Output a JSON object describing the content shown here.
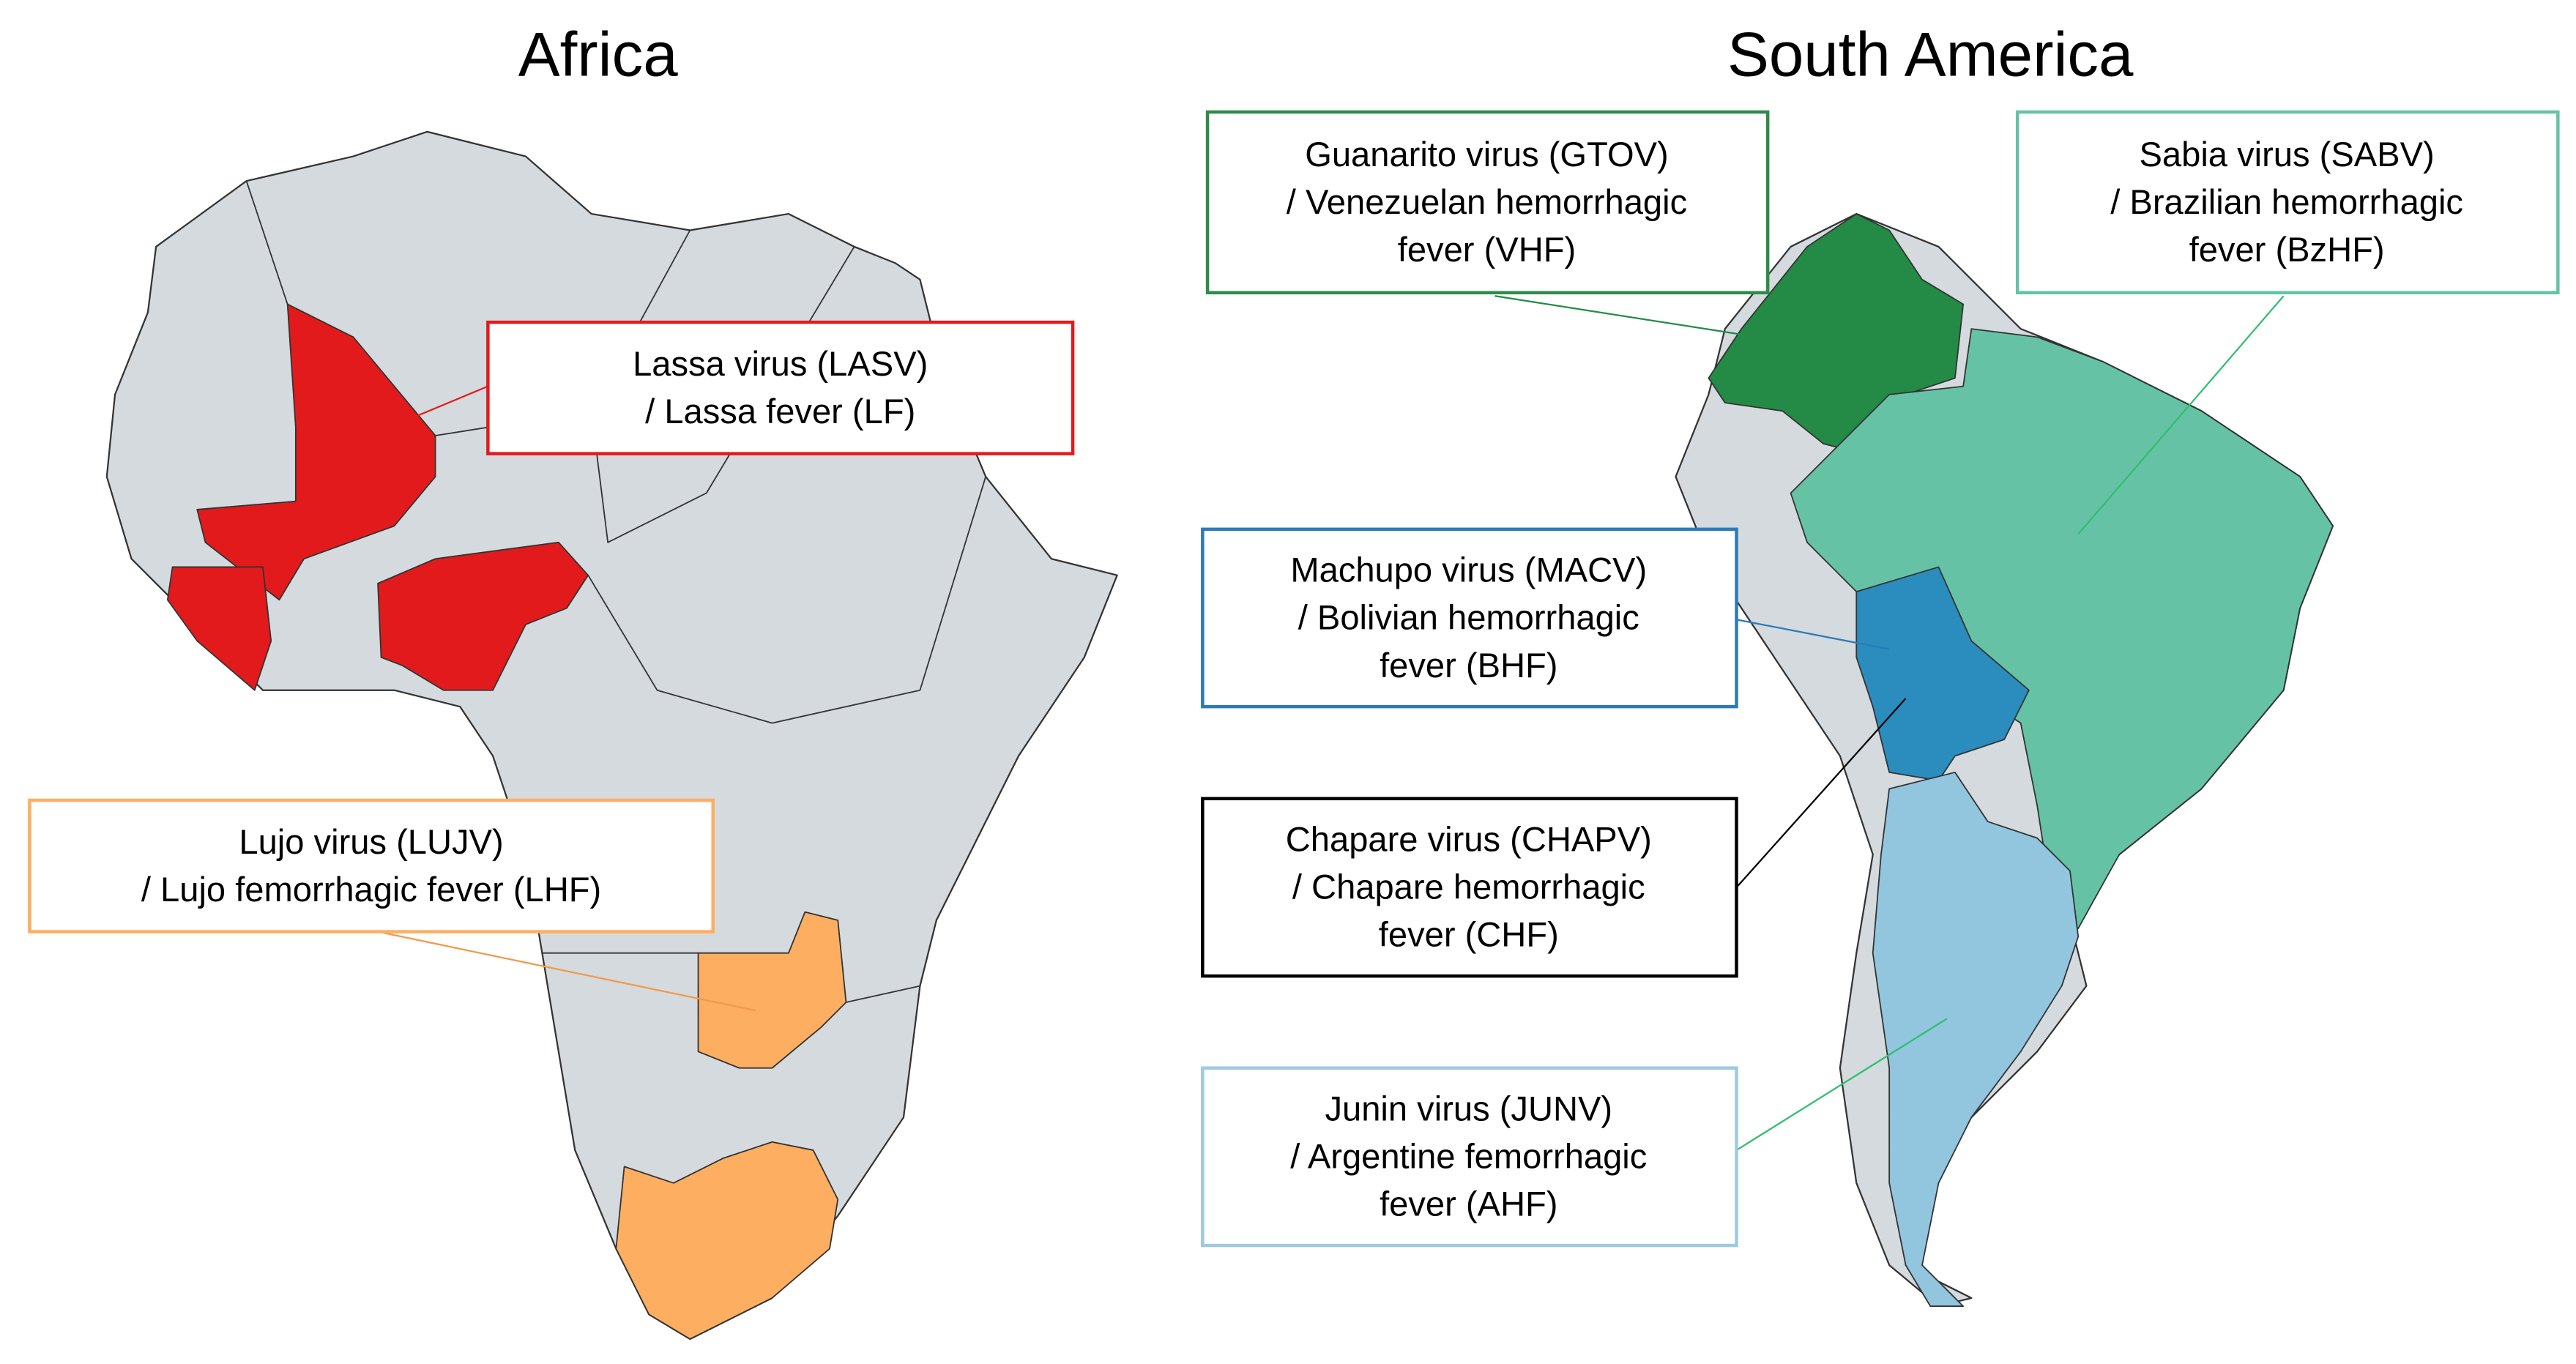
{
  "titles": {
    "africa": "Africa",
    "south_america": "South America"
  },
  "labels": [
    {
      "lines": [
        "Lassa virus (LASV)",
        "/ Lassa fever (LF)"
      ]
    },
    {
      "lines": [
        "Lujo virus (LUJV)",
        "/ Lujo femorrhagic fever (LHF)"
      ]
    },
    {
      "lines": [
        "Guanarito virus (GTOV)",
        "/ Venezuelan hemorrhagic",
        "fever (VHF)"
      ]
    },
    {
      "lines": [
        "Sabia virus (SABV)",
        "/ Brazilian hemorrhagic",
        "fever (BzHF)"
      ]
    },
    {
      "lines": [
        "Machupo virus (MACV)",
        "/ Bolivian hemorrhagic",
        "fever (BHF)"
      ]
    },
    {
      "lines": [
        "Chapare virus (CHAPV)",
        "/ Chapare hemorrhagic",
        "fever (CHF)"
      ]
    },
    {
      "lines": [
        "Junin virus (JUNV)",
        "/ Argentine femorrhagic",
        "fever (AHF)"
      ]
    }
  ]
}
